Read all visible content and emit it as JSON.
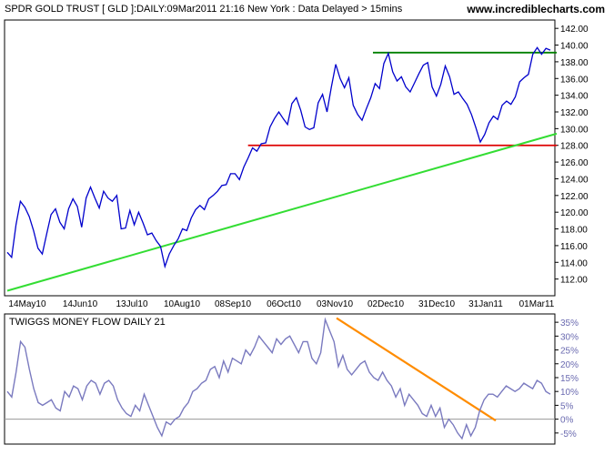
{
  "header": {
    "title": "SPDR GOLD TRUST [ GLD ]:DAILY:09Mar2011 21:16 New York : Data Delayed > 15mins",
    "url": "www.incrediblecharts.com"
  },
  "chart_data": [
    {
      "type": "line",
      "title": "SPDR GOLD TRUST [ GLD ]:DAILY:09Mar2011 21:16 New York : Data Delayed > 15mins",
      "x_labels": [
        "14May10",
        "14Jun10",
        "13Jul10",
        "10Aug10",
        "08Sep10",
        "06Oct10",
        "03Nov10",
        "02Dec10",
        "31Dec10",
        "31Jan11",
        "01Mar11"
      ],
      "y_ticks": [
        "112.00",
        "114.00",
        "116.00",
        "118.00",
        "120.00",
        "122.00",
        "124.00",
        "126.00",
        "128.00",
        "130.00",
        "132.00",
        "134.00",
        "136.00",
        "138.00",
        "140.00",
        "142.00"
      ],
      "ylim": [
        110,
        143
      ],
      "grid": false,
      "colors": {
        "price": "#0000cc",
        "support": "#dd0000",
        "resistance": "#008000",
        "trend": "#33dd33"
      },
      "series": [
        {
          "values": [
            115.2,
            114.6,
            118.5,
            121.3,
            120.6,
            119.5,
            117.8,
            115.7,
            115.0,
            117.4,
            119.7,
            120.4,
            118.8,
            118.0,
            120.4,
            121.6,
            120.7,
            118.2,
            121.7,
            123.0,
            121.7,
            120.5,
            122.5,
            121.7,
            121.3,
            122.0,
            118.0,
            118.1,
            120.2,
            118.5,
            120.0,
            118.7,
            117.3,
            117.5,
            116.6,
            115.9,
            113.5,
            115.0,
            116.0,
            116.8,
            118.0,
            117.8,
            119.3,
            120.3,
            120.8,
            120.3,
            121.6,
            122.0,
            122.5,
            123.2,
            123.3,
            124.6,
            124.6,
            123.9,
            125.4,
            126.5,
            127.7,
            127.3,
            128.2,
            128.3,
            130.2,
            131.2,
            132.0,
            131.2,
            130.5,
            133.0,
            133.7,
            132.2,
            130.2,
            129.9,
            130.1,
            133.1,
            134.1,
            132.0,
            135.0,
            137.7,
            136.0,
            134.9,
            136.1,
            132.8,
            131.7,
            131.0,
            132.4,
            133.7,
            135.4,
            134.8,
            137.8,
            139.0,
            136.8,
            135.7,
            136.2,
            135.0,
            134.4,
            135.5,
            136.6,
            137.6,
            137.9,
            135.0,
            133.9,
            135.3,
            137.5,
            136.2,
            134.1,
            134.4,
            133.6,
            132.9,
            131.7,
            130.1,
            128.4,
            129.3,
            130.7,
            131.5,
            131.1,
            132.8,
            133.3,
            132.9,
            133.8,
            135.6,
            136.1,
            136.5,
            138.9,
            139.7,
            138.9,
            139.6,
            139.4
          ],
          "x_range_labels": [
            "14May10",
            "01Mar11"
          ]
        }
      ],
      "annotations": [
        {
          "type": "horizontal-line",
          "label": "support",
          "y": 128.0,
          "from": "08Sep10",
          "to": "end",
          "color": "#dd0000"
        },
        {
          "type": "horizontal-line",
          "label": "resistance",
          "y": 139.1,
          "from": "02Dec10",
          "to": "end",
          "color": "#008000"
        },
        {
          "type": "trend-line",
          "label": "rising trendline",
          "from_value": 110.6,
          "to_value": 129.4,
          "from": "start",
          "to": "end",
          "color": "#33dd33"
        }
      ]
    },
    {
      "type": "line",
      "title": "TWIGGS MONEY FLOW DAILY 21",
      "y_ticks": [
        "-5%",
        "0%",
        "5%",
        "10%",
        "15%",
        "20%",
        "25%",
        "30%",
        "35%"
      ],
      "ylim": [
        -9,
        38
      ],
      "zero_line": true,
      "colors": {
        "indicator": "#7a7abf",
        "trend": "#ff8c00"
      },
      "series": [
        {
          "values": [
            10,
            8,
            17,
            28,
            26,
            18,
            11,
            6,
            5,
            6,
            7,
            4,
            3,
            10,
            8,
            12,
            11,
            7,
            12,
            14,
            13,
            9,
            13,
            14,
            12,
            7,
            4,
            2,
            1,
            5,
            3,
            9,
            5,
            1,
            -3,
            -6,
            -1,
            -2,
            0,
            1,
            4,
            6,
            10,
            11,
            13,
            14,
            18,
            19,
            15,
            21,
            17,
            22,
            21,
            20,
            25,
            23,
            26,
            30,
            28,
            26,
            24,
            29,
            27,
            29,
            30,
            27,
            24,
            28,
            28,
            22,
            20,
            24,
            36,
            32,
            28,
            19,
            23,
            18,
            16,
            18,
            20,
            21,
            17,
            15,
            14,
            17,
            14,
            12,
            8,
            11,
            5,
            9,
            7,
            5,
            2,
            1,
            5,
            1,
            4,
            -3,
            0,
            -2,
            -5,
            -7,
            -2,
            -6,
            -3,
            3,
            7,
            9,
            9,
            8,
            10,
            12,
            11,
            10,
            11,
            13,
            12,
            11,
            14,
            13,
            10,
            9
          ],
          "x_range_labels": [
            "14May10",
            "01Mar11"
          ]
        }
      ],
      "annotations": [
        {
          "type": "trend-line",
          "label": "declining trendline",
          "from_value": 36.5,
          "to_value": -0.5,
          "from": "03Nov10",
          "to": "31Jan11",
          "color": "#ff8c00"
        }
      ]
    }
  ]
}
